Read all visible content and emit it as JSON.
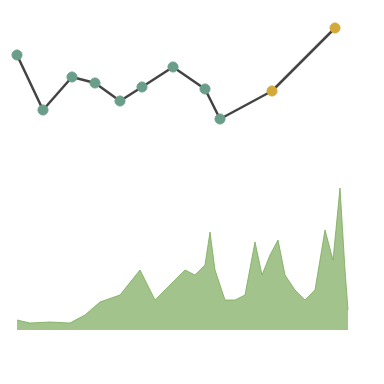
{
  "chart_data": [
    {
      "type": "line",
      "x": [
        17,
        43,
        72,
        95,
        120,
        142,
        173,
        205,
        220,
        272,
        335
      ],
      "values": [
        75,
        20,
        53,
        47,
        29,
        43,
        63,
        41,
        11,
        39,
        102
      ],
      "color": "#444444",
      "colors": [
        "#6a9e8a",
        "#6a9e8a",
        "#6a9e8a",
        "#6a9e8a",
        "#6a9e8a",
        "#6a9e8a",
        "#6a9e8a",
        "#6a9e8a",
        "#6a9e8a",
        "#d4a839",
        "#d4a839"
      ],
      "marker": "circle",
      "xlim": [
        0,
        384
      ],
      "ylim": [
        0,
        130
      ],
      "grid": false,
      "tick_labels": false
    },
    {
      "type": "area",
      "x": [
        17,
        30,
        50,
        70,
        85,
        100,
        120,
        140,
        155,
        170,
        185,
        195,
        205,
        210,
        215,
        225,
        235,
        245,
        255,
        262,
        270,
        278,
        285,
        295,
        305,
        315,
        325,
        333,
        340,
        345,
        348
      ],
      "values": [
        10,
        7,
        8,
        7,
        15,
        28,
        35,
        60,
        30,
        45,
        60,
        55,
        65,
        98,
        60,
        30,
        30,
        35,
        88,
        55,
        75,
        90,
        55,
        40,
        30,
        40,
        100,
        70,
        142,
        60,
        20
      ],
      "color": "#7aaa5a",
      "xlim": [
        0,
        384
      ],
      "ylim": [
        0,
        180
      ],
      "grid": false,
      "tick_labels": false
    }
  ]
}
